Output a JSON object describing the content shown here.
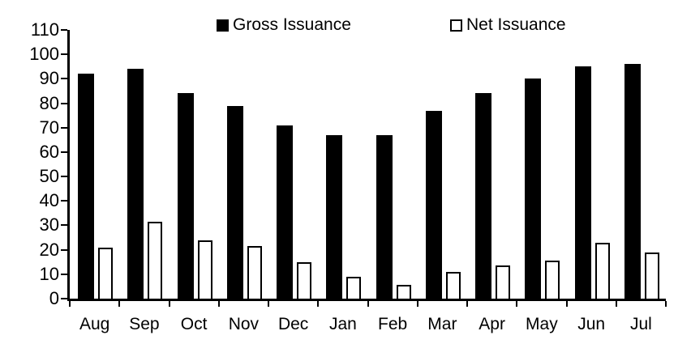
{
  "chart_data": {
    "type": "bar",
    "categories": [
      "Aug",
      "Sep",
      "Oct",
      "Nov",
      "Dec",
      "Jan",
      "Feb",
      "Mar",
      "Apr",
      "May",
      "Jun",
      "Jul"
    ],
    "series": [
      {
        "name": "Gross Issuance",
        "style": "solid",
        "fill_color": "#000000",
        "values": [
          92,
          94,
          84,
          79,
          71,
          67,
          67,
          77,
          84,
          90,
          95,
          96
        ]
      },
      {
        "name": "Net Issuance",
        "style": "outline",
        "fill_color": "#ffffff",
        "border_color": "#000000",
        "values": [
          21,
          31.5,
          24,
          21.5,
          15,
          9,
          5.5,
          11,
          13.5,
          15.5,
          23,
          19
        ]
      }
    ],
    "title": "",
    "xlabel": "",
    "ylabel": "",
    "ylim": [
      0,
      110
    ],
    "ytick_step": 10,
    "ytick_labels": [
      "0",
      "10",
      "20",
      "30",
      "40",
      "50",
      "60",
      "70",
      "80",
      "90",
      "100",
      "110"
    ],
    "grid": false,
    "legend_position": "top",
    "axis_color": "#000000",
    "background_color": "#ffffff",
    "text_color": "#000000"
  }
}
